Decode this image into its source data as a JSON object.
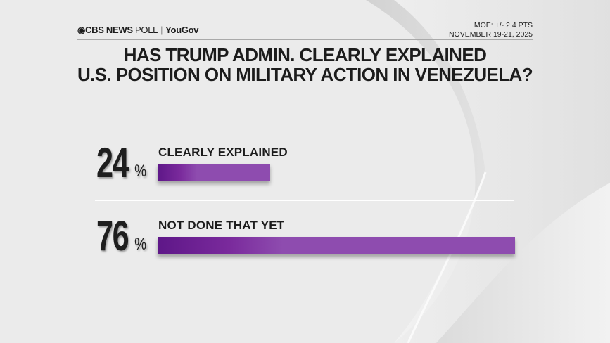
{
  "header": {
    "brand": "CBS NEWS",
    "poll": "POLL",
    "partner": "YouGov",
    "moe": "MOE: +/- 2.4 PTS",
    "dates": "NOVEMBER 19-21, 2025"
  },
  "colors": {
    "bar": "#8e4caf",
    "bar_dark": "#5e1788",
    "background": "#e9e9e9"
  },
  "chart_data": {
    "type": "bar",
    "orientation": "horizontal",
    "title_lines": [
      "HAS TRUMP ADMIN. CLEARLY EXPLAINED",
      "U.S. POSITION ON MILITARY ACTION IN VENEZUELA?"
    ],
    "categories": [
      "CLEARLY EXPLAINED",
      "NOT DONE THAT YET"
    ],
    "values": [
      24,
      76
    ],
    "data_labels": [
      "24",
      "76"
    ],
    "unit": "%",
    "grid": false
  }
}
